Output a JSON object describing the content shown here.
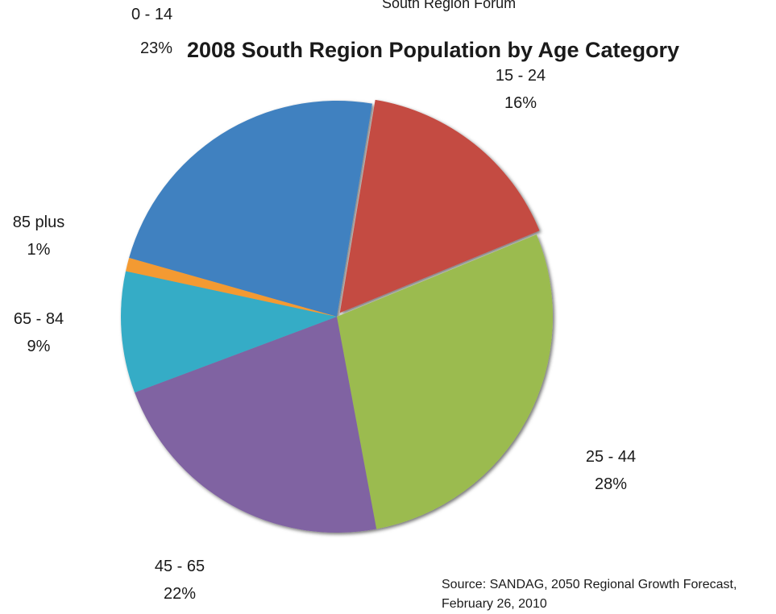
{
  "chart_data": {
    "type": "pie",
    "subtitle": "South Region Forum",
    "title": "2008 South Region Population by Age Category",
    "slices": [
      {
        "label": "0 - 14",
        "value": 23,
        "value_label": "23%",
        "color": "#4181c0"
      },
      {
        "label": "15 - 24",
        "value": 16,
        "value_label": "16%",
        "color": "#c44c43"
      },
      {
        "label": "25 - 44",
        "value": 28,
        "value_label": "28%",
        "color": "#9bbb50"
      },
      {
        "label": "45 - 65",
        "value": 22,
        "value_label": "22%",
        "color": "#8064a2"
      },
      {
        "label": "65 - 84",
        "value": 9,
        "value_label": "9%",
        "color": "#35acc6"
      },
      {
        "label": "85 plus",
        "value": 1,
        "value_label": "1%",
        "color": "#f39a33"
      }
    ],
    "exploded_slice": "15 - 24",
    "source_lines": [
      "Source: SANDAG, 2050 Regional Growth Forecast,",
      "February 26, 2010"
    ]
  }
}
